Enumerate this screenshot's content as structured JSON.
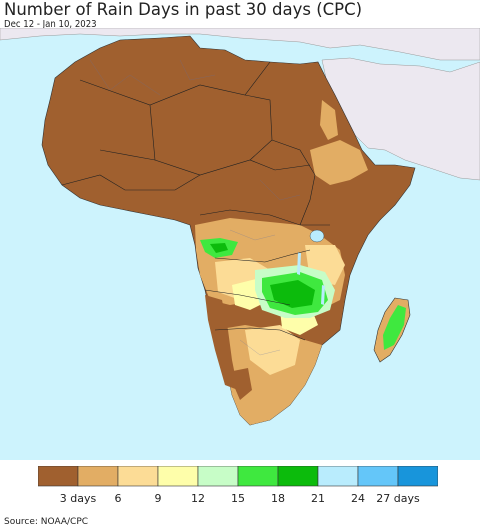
{
  "title": "Number of Rain Days in past 30 days (CPC)",
  "subtitle": "Dec 12 - Jan 10, 2023",
  "source": "Source: NOAA/CPC",
  "legend": {
    "colors": [
      "#a0602f",
      "#e2ad64",
      "#fcdc96",
      "#fefeaa",
      "#c7fdc7",
      "#3fe83f",
      "#0cbb0c",
      "#b9ecfd",
      "#64c6f9",
      "#1895db"
    ],
    "tick_labels": [
      "3 days",
      "6",
      "9",
      "12",
      "15",
      "18",
      "21",
      "24",
      "27 days"
    ]
  },
  "map_colors": {
    "ocean": "#cdf3fd",
    "nodata_land": "#ece8f0",
    "dry": "#a0602f",
    "low": "#e2ad64",
    "mid": "#fcdc96",
    "light": "#fefeaa",
    "wet1": "#c7fdc7",
    "wet2": "#3fe83f",
    "wet3": "#0cbb0c",
    "lake": "#b9ecfd"
  }
}
